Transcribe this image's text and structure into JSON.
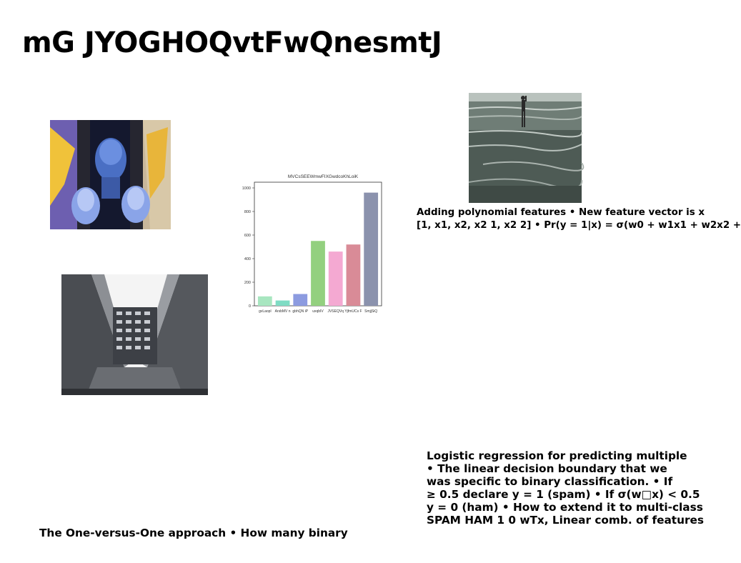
{
  "slide": {
    "title": "mG JYOGHOQvtFwQnesmtJ",
    "text_polynomial": {
      "lines": [
        "Adding polynomial features • New feature vector is x",
        "[1, x1, x2, x2 1, x2 2] • Pr(y = 1|x) = σ(w0 + w1x1 + w2x2 +"
      ]
    },
    "text_logistic": {
      "lines": [
        "Logistic regression for predicting multiple",
        "• The linear decision boundary that we",
        "was specific to binary classification. • If",
        "≥ 0.5 declare y = 1 (spam) • If σ(w□x) < 0.5",
        "y = 0 (ham) • How to extend it to multi-class",
        "SPAM HAM 1 0 wTx, Linear comb. of features"
      ]
    },
    "text_ovo": "The One-versus-One approach • How many binary"
  },
  "chart_data": {
    "type": "bar",
    "title": "MVCsSEEWmwFIXGwdcoKhLoiK",
    "categories": [
      "gvLaopl",
      "ArsbMV n",
      "gbhQN iP",
      "uxqbIV",
      "JVSEQVq",
      "YjfmUCs F",
      "SmjjSiQ"
    ],
    "values": [
      80,
      45,
      100,
      550,
      460,
      520,
      960
    ],
    "colors": [
      "#a8e6c0",
      "#7fdcc4",
      "#8c9be0",
      "#93d07f",
      "#f4a9d2",
      "#d98b97",
      "#8b92ad"
    ],
    "yticks": [
      0,
      200,
      400,
      600,
      800,
      1000
    ],
    "ylim": [
      0,
      1000
    ],
    "xlabel": "",
    "ylabel": "",
    "grid": false
  },
  "images": [
    {
      "description_icon": "portrait-photo-icon"
    },
    {
      "description_icon": "building-photo-icon"
    },
    {
      "description_icon": "beach-photo-icon"
    }
  ]
}
